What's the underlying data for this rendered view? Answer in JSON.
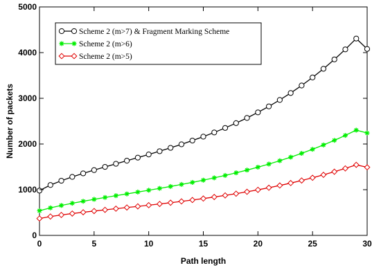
{
  "chart_data": {
    "type": "line",
    "title": "",
    "xlabel": "Path length",
    "ylabel": "Number of packets",
    "xlim": [
      0,
      30
    ],
    "ylim": [
      0,
      5000
    ],
    "xticks": [
      0,
      5,
      10,
      15,
      20,
      25,
      30
    ],
    "yticks": [
      0,
      1000,
      2000,
      3000,
      4000,
      5000
    ],
    "grid": false,
    "legend_position": "top-left",
    "x": [
      0,
      1,
      2,
      3,
      4,
      5,
      6,
      7,
      8,
      9,
      10,
      11,
      12,
      13,
      14,
      15,
      16,
      17,
      18,
      19,
      20,
      21,
      22,
      23,
      24,
      25,
      26,
      27,
      28,
      29,
      30
    ],
    "series": [
      {
        "name": "Scheme 2 (m>7) & Fragment Marking Scheme",
        "color": "#000000",
        "marker": "circle",
        "values": [
          980,
          1102,
          1196,
          1280,
          1357,
          1429,
          1499,
          1567,
          1634,
          1702,
          1771,
          1842,
          1916,
          1993,
          2075,
          2161,
          2253,
          2351,
          2457,
          2570,
          2692,
          2823,
          2964,
          3116,
          3280,
          3456,
          3646,
          3851,
          4071,
          4308,
          4080
        ]
      },
      {
        "name": "Scheme 2 (m>6)",
        "color": "#00ee00",
        "marker": "star",
        "values": [
          540,
          602,
          655,
          703,
          747,
          789,
          830,
          869,
          908,
          948,
          988,
          1029,
          1071,
          1115,
          1160,
          1208,
          1259,
          1312,
          1369,
          1429,
          1493,
          1561,
          1634,
          1712,
          1795,
          1884,
          1979,
          2080,
          2188,
          2303,
          2240
        ]
      },
      {
        "name": "Scheme 2 (m>5)",
        "color": "#e00000",
        "marker": "diamond",
        "values": [
          370,
          413,
          447,
          478,
          506,
          533,
          559,
          585,
          610,
          635,
          661,
          688,
          715,
          744,
          774,
          806,
          840,
          875,
          913,
          954,
          997,
          1043,
          1092,
          1145,
          1201,
          1261,
          1325,
          1393,
          1466,
          1544,
          1490
        ]
      }
    ]
  }
}
